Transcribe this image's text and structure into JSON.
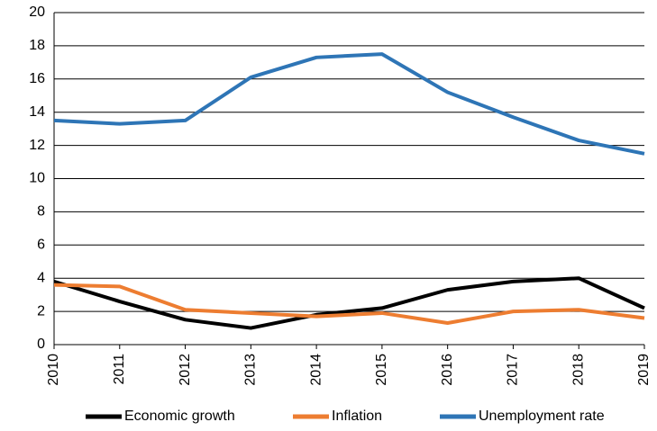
{
  "chart_data": {
    "type": "line",
    "categories": [
      "2010",
      "2011",
      "2012",
      "2013",
      "2014",
      "2015",
      "2016",
      "2017",
      "2018",
      "2019"
    ],
    "series": [
      {
        "name": "Economic growth",
        "color": "#000000",
        "values": [
          3.8,
          2.6,
          1.5,
          1.0,
          1.8,
          2.2,
          3.3,
          3.8,
          4.0,
          2.2
        ]
      },
      {
        "name": "Inflation",
        "color": "#ed7d31",
        "values": [
          3.6,
          3.5,
          2.1,
          1.9,
          1.7,
          1.9,
          1.3,
          2.0,
          2.1,
          1.6
        ]
      },
      {
        "name": "Unemployment rate",
        "color": "#2e75b6",
        "values": [
          13.5,
          13.3,
          13.5,
          16.1,
          17.3,
          17.5,
          15.2,
          13.7,
          12.3,
          11.5
        ]
      }
    ],
    "ylim": [
      0,
      20
    ],
    "yticks": [
      0,
      2,
      4,
      6,
      8,
      10,
      12,
      14,
      16,
      18,
      20
    ],
    "grid": true,
    "legend": "bottom"
  }
}
